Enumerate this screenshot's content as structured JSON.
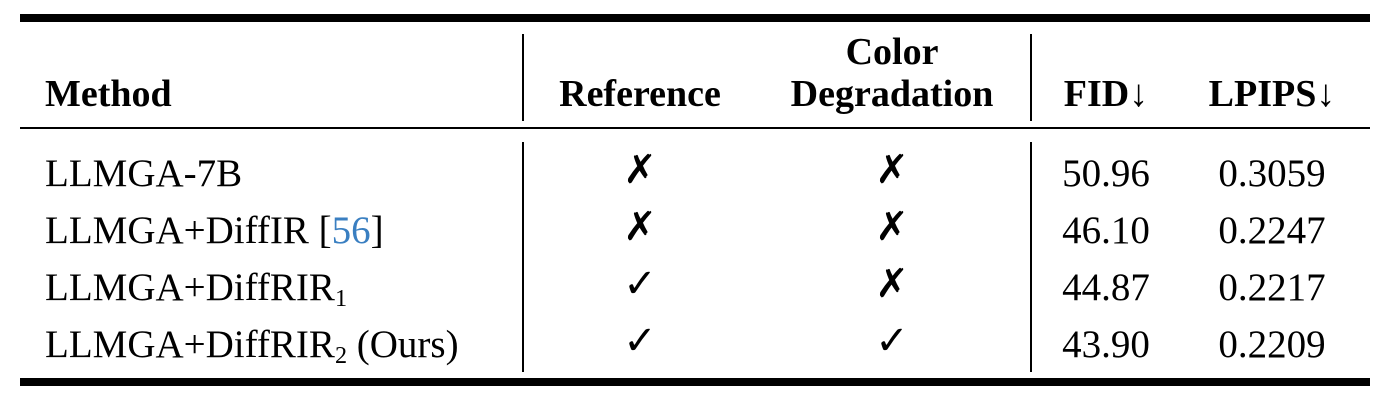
{
  "table": {
    "headers": {
      "method": "Method",
      "reference": "Reference",
      "color_degradation_line1": "Color",
      "color_degradation_line2": "Degradation",
      "fid": "FID↓",
      "lpips": "LPIPS↓"
    },
    "rows": [
      {
        "method": "LLMGA-7B",
        "method_sub": "",
        "method_suffix": "",
        "cite_pre": "",
        "cite": "",
        "cite_post": "",
        "reference": "✗",
        "color_degradation": "✗",
        "fid": "50.96",
        "lpips": "0.3059"
      },
      {
        "method": "LLMGA+DiffIR",
        "method_sub": "",
        "method_suffix": "",
        "cite_pre": " [",
        "cite": "56",
        "cite_post": "]",
        "reference": "✗",
        "color_degradation": "✗",
        "fid": "46.10",
        "lpips": "0.2247"
      },
      {
        "method": "LLMGA+DiffRIR",
        "method_sub": "1",
        "method_suffix": "",
        "cite_pre": "",
        "cite": "",
        "cite_post": "",
        "reference": "✓",
        "color_degradation": "✗",
        "fid": "44.87",
        "lpips": "0.2217"
      },
      {
        "method": "LLMGA+DiffRIR",
        "method_sub": "2",
        "method_suffix": " (Ours)",
        "cite_pre": "",
        "cite": "",
        "cite_post": "",
        "reference": "✓",
        "color_degradation": "✓",
        "fid": "43.90",
        "lpips": "0.2209"
      }
    ]
  },
  "colors": {
    "citation": "#3a7fc1",
    "text": "#000000"
  }
}
